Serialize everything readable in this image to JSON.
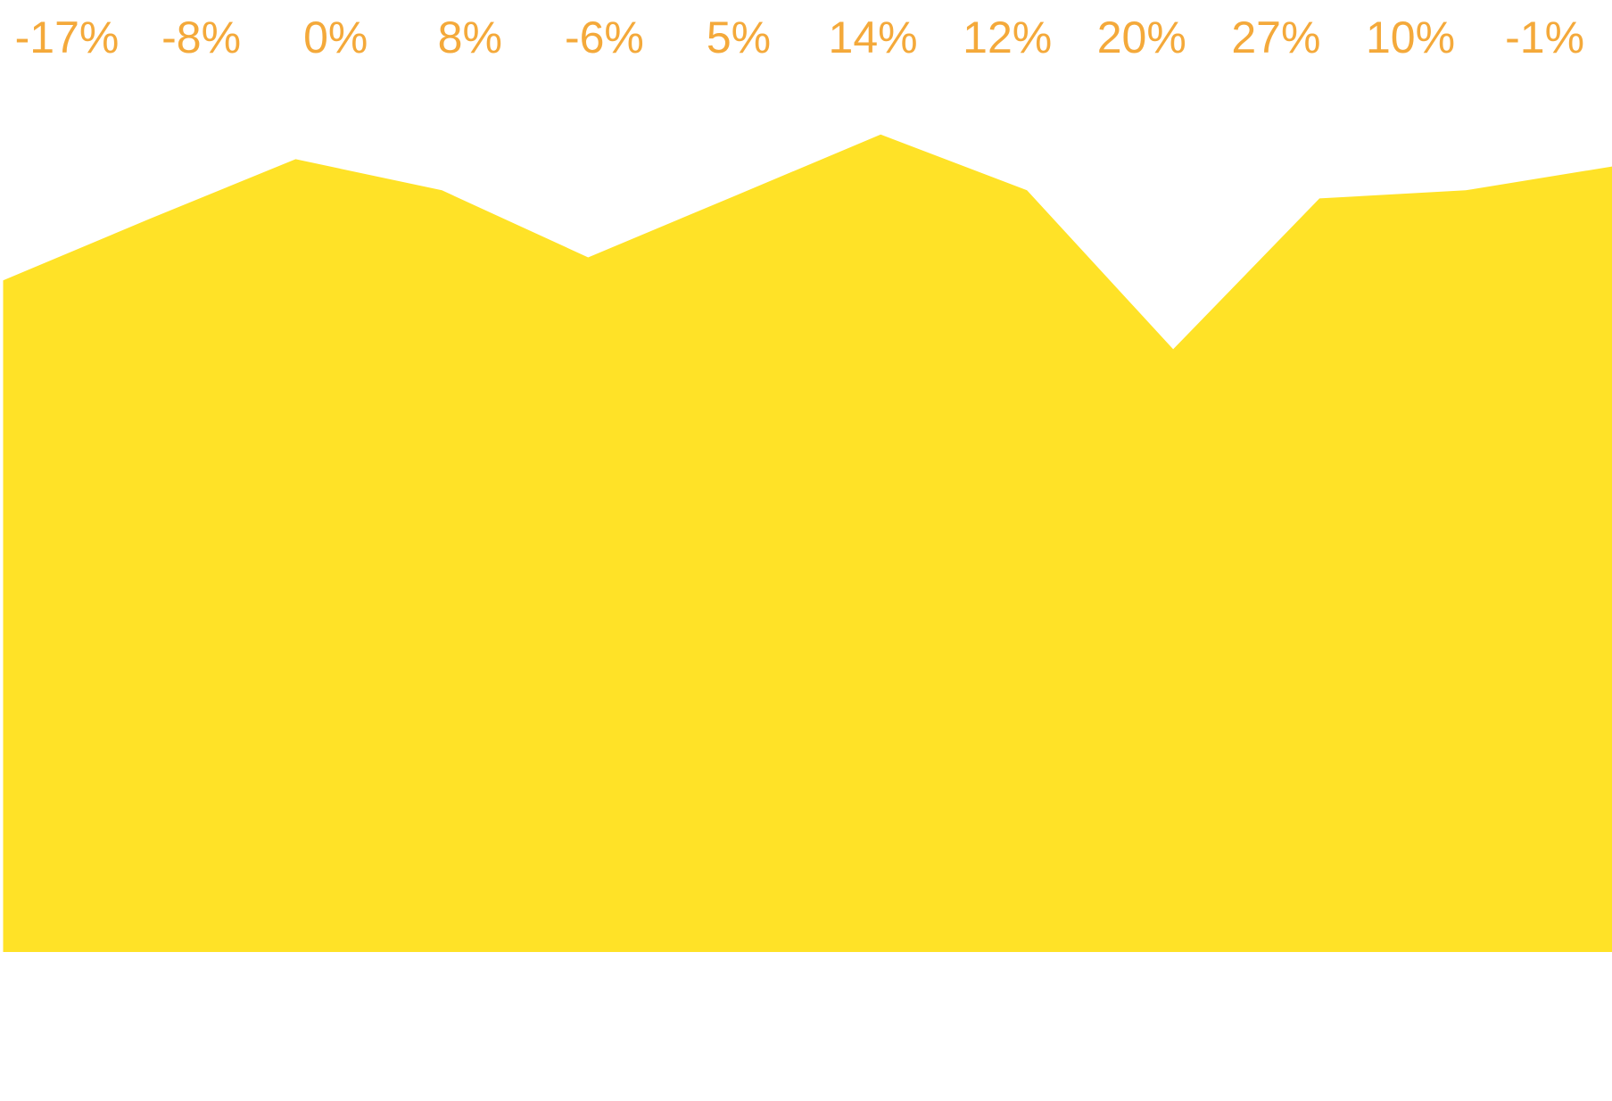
{
  "chart_data": {
    "type": "area",
    "values": [
      82,
      89.5,
      96.8,
      93,
      84.8,
      92.3,
      99.8,
      93,
      73.6,
      92,
      93,
      95.9
    ],
    "ylim": [
      0,
      100
    ],
    "color": "#FFE227",
    "changes": [
      -17,
      -8,
      0,
      8,
      -6,
      5,
      14,
      12,
      20,
      27,
      10,
      -1
    ],
    "change_labels": [
      "-17%",
      "-8%",
      "0%",
      "8%",
      "-6%",
      "5%",
      "14%",
      "12%",
      "20%",
      "27%",
      "10%",
      "-1%"
    ],
    "label_color": "#F4A93A"
  }
}
